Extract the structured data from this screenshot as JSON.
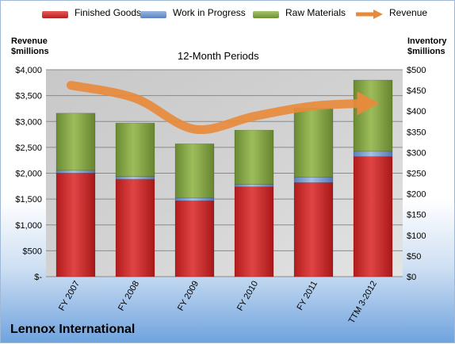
{
  "legend": {
    "finished_goods": "Finished Goods",
    "wip": "Work in Progress",
    "raw": "Raw Materials",
    "revenue": "Revenue"
  },
  "titles": {
    "left_axis_line1": "Revenue",
    "left_axis_line2": "$millions",
    "right_axis_line1": "Inventory",
    "right_axis_line2": "$millions",
    "plot": "12-Month Periods",
    "company": "Lennox International"
  },
  "colors": {
    "finished_goods": "#cf2a2a",
    "wip": "#6d93cc",
    "raw": "#86a848",
    "revenue": "#e88a3c"
  },
  "chart_data": {
    "type": "bar",
    "stacked": true,
    "title": "12-Month Periods",
    "categories": [
      "FY 2007",
      "FY 2008",
      "FY 2009",
      "FY 2010",
      "FY 2011",
      "TTM 3-2012"
    ],
    "series": [
      {
        "name": "Finished Goods",
        "axis": "right",
        "values": [
          250,
          235,
          183,
          217,
          227,
          290
        ]
      },
      {
        "name": "Work in Progress",
        "axis": "right",
        "values": [
          7,
          7,
          7,
          6,
          13,
          13
        ]
      },
      {
        "name": "Raw Materials",
        "axis": "right",
        "values": [
          138,
          129,
          131,
          131,
          167,
          172
        ]
      },
      {
        "name": "Revenue",
        "axis": "left",
        "type": "line",
        "values": [
          3700,
          3450,
          2850,
          3100,
          3300,
          3350
        ]
      }
    ],
    "y_left": {
      "label": "Revenue $millions",
      "min": 0,
      "max": 4000,
      "step": 500,
      "ticks": [
        "$-",
        "$500",
        "$1,000",
        "$1,500",
        "$2,000",
        "$2,500",
        "$3,000",
        "$3,500",
        "$4,000"
      ]
    },
    "y_right": {
      "label": "Inventory $millions",
      "min": 0,
      "max": 500,
      "step": 50,
      "ticks": [
        "$0",
        "$50",
        "$100",
        "$150",
        "$200",
        "$250",
        "$300",
        "$350",
        "$400",
        "$450",
        "$500"
      ]
    },
    "grid": true,
    "legend_position": "top"
  }
}
